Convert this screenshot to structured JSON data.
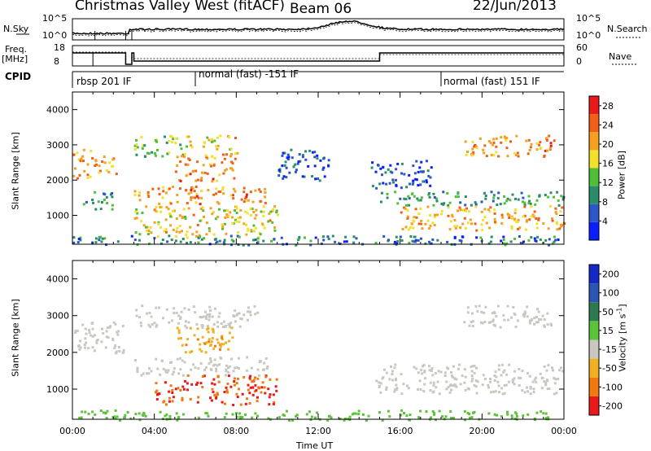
{
  "header": {
    "station": "Christmas Valley West (fitACF)",
    "beam": "Beam 06",
    "date": "22/Jun/2013"
  },
  "noise_panel": {
    "left_label": "N.Sky",
    "right_label": "N.Search",
    "left_ticks": [
      "10^5",
      "10^0"
    ],
    "right_ticks": [
      "10^5",
      "10^0"
    ]
  },
  "freq_panel": {
    "left_label_1": "Freq.",
    "left_label_2": "[MHz]",
    "right_label": "Nave",
    "left_ticks": [
      "18",
      "8"
    ],
    "right_ticks": [
      "60",
      "0"
    ]
  },
  "cpid": {
    "label": "CPID",
    "segments": [
      {
        "text": "rbsp 201 IF",
        "start_hour": 0
      },
      {
        "text": "normal (fast) -151 IF",
        "start_hour": 6
      },
      {
        "text": "normal (fast) 151 IF",
        "start_hour": 18
      }
    ]
  },
  "chart_data": [
    {
      "type": "heatmap",
      "name": "power",
      "ylabel": "Slant Range [km]",
      "xlabel": "Time UT",
      "xlim_hours": [
        0,
        24
      ],
      "ylim_km": [
        180,
        4500
      ],
      "y_ticks": [
        1000,
        2000,
        3000,
        4000
      ],
      "colorbar": {
        "label": "Power [dB]",
        "ticks": [
          4,
          8,
          12,
          16,
          20,
          24,
          28
        ],
        "range": [
          0,
          30
        ],
        "colors": [
          "#0a1eff",
          "#2a56c8",
          "#2a8c6a",
          "#4fbf3a",
          "#f2e02a",
          "#f5a020",
          "#f06018",
          "#e81a1a"
        ]
      },
      "bands": [
        {
          "t": [
            0.0,
            1.1
          ],
          "r": [
            2050,
            2900
          ],
          "power": 20
        },
        {
          "t": [
            1.1,
            2.3
          ],
          "r": [
            2200,
            2700
          ],
          "power": 22
        },
        {
          "t": [
            0.5,
            2.0
          ],
          "r": [
            1200,
            1700
          ],
          "power": 10
        },
        {
          "t": [
            3.0,
            5.5
          ],
          "r": [
            2700,
            3300
          ],
          "power": 14
        },
        {
          "t": [
            5.5,
            8.0
          ],
          "r": [
            2900,
            3300
          ],
          "power": 18
        },
        {
          "t": [
            3.0,
            9.5
          ],
          "r": [
            1350,
            1850
          ],
          "power": 22
        },
        {
          "t": [
            5.0,
            8.0
          ],
          "r": [
            2000,
            2800
          ],
          "power": 22
        },
        {
          "t": [
            3.0,
            10.0
          ],
          "r": [
            400,
            1300
          ],
          "power": 18
        },
        {
          "t": [
            10.0,
            12.5
          ],
          "r": [
            2000,
            2900
          ],
          "power": 6
        },
        {
          "t": [
            14.5,
            17.5
          ],
          "r": [
            1800,
            2600
          ],
          "power": 6
        },
        {
          "t": [
            15.0,
            24.0
          ],
          "r": [
            1300,
            1700
          ],
          "power": 10
        },
        {
          "t": [
            16.0,
            24.0
          ],
          "r": [
            600,
            1300
          ],
          "power": 20
        },
        {
          "t": [
            19.0,
            23.5
          ],
          "r": [
            2700,
            3300
          ],
          "power": 22
        },
        {
          "t": [
            0.0,
            24.0
          ],
          "r": [
            180,
            450
          ],
          "power": 8
        }
      ]
    },
    {
      "type": "heatmap",
      "name": "velocity",
      "ylabel": "Slant Range [km]",
      "xlabel": "Time UT",
      "xlim_hours": [
        0,
        24
      ],
      "ylim_km": [
        180,
        4500
      ],
      "y_ticks": [
        1000,
        2000,
        3000,
        4000
      ],
      "x_ticks": [
        "00:00",
        "04:00",
        "08:00",
        "12:00",
        "16:00",
        "20:00",
        "00:00"
      ],
      "colorbar": {
        "label": "Velocity [m s",
        "label_sup": "-1",
        "label_end": "]",
        "ticks": [
          "200",
          "100",
          "50",
          "15",
          "-15",
          "-50",
          "-100",
          "-200"
        ],
        "colors": [
          "#1428c8",
          "#2a55b4",
          "#2e7a50",
          "#5cc23a",
          "#c8c8c0",
          "#f2b020",
          "#f07a10",
          "#e81a1a"
        ]
      },
      "bands": [
        {
          "t": [
            0.0,
            2.5
          ],
          "r": [
            2000,
            2900
          ],
          "velocity": 0
        },
        {
          "t": [
            3.0,
            9.5
          ],
          "r": [
            1400,
            1900
          ],
          "velocity": 0
        },
        {
          "t": [
            3.0,
            9.0
          ],
          "r": [
            2700,
            3300
          ],
          "velocity": 0
        },
        {
          "t": [
            5.0,
            8.0
          ],
          "r": [
            2000,
            2700
          ],
          "velocity": -40
        },
        {
          "t": [
            4.0,
            10.0
          ],
          "r": [
            600,
            1400
          ],
          "velocity": -100
        },
        {
          "t": [
            14.5,
            24.0
          ],
          "r": [
            900,
            1700
          ],
          "velocity": 0
        },
        {
          "t": [
            19.0,
            23.5
          ],
          "r": [
            2700,
            3300
          ],
          "velocity": 0
        },
        {
          "t": [
            0.0,
            24.0
          ],
          "r": [
            180,
            450
          ],
          "velocity": 30
        }
      ]
    }
  ]
}
